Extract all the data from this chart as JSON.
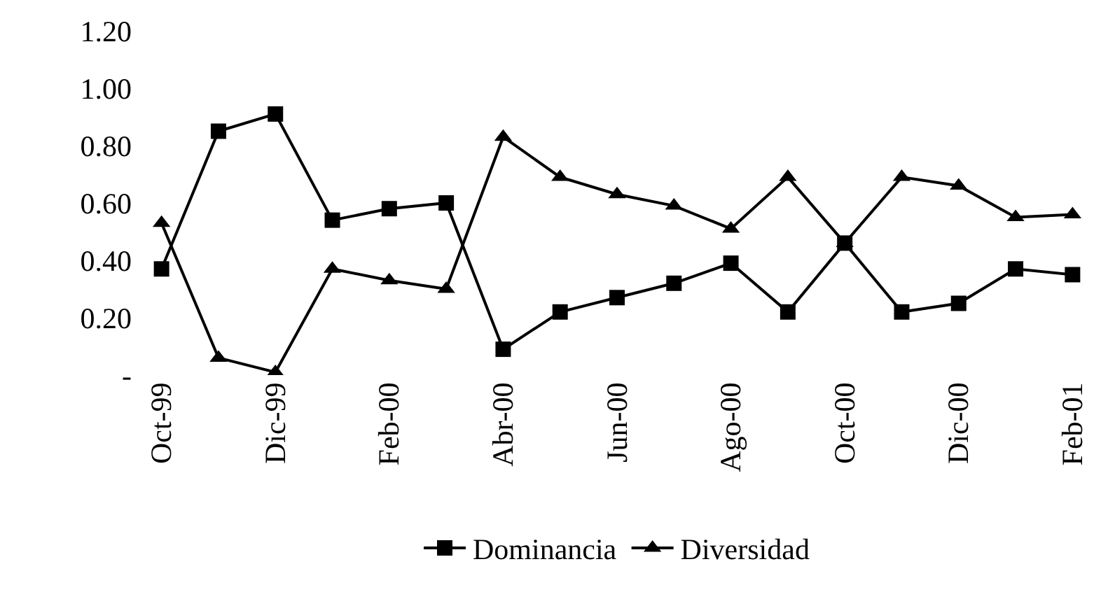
{
  "chart_data": {
    "type": "line",
    "categories": [
      "Oct-99",
      null,
      "Dic-99",
      null,
      "Feb-00",
      null,
      "Abr-00",
      null,
      "Jun-00",
      null,
      "Ago-00",
      null,
      "Oct-00",
      null,
      "Dic-00",
      null,
      "Feb-01"
    ],
    "series": [
      {
        "name": "Dominancia",
        "color": "#000000",
        "marker": "square",
        "values": [
          0.37,
          0.85,
          0.91,
          0.54,
          0.58,
          0.6,
          0.09,
          0.22,
          0.27,
          0.32,
          0.39,
          0.22,
          0.46,
          0.22,
          0.25,
          0.37,
          0.35
        ]
      },
      {
        "name": "Diversidad",
        "color": "#000000",
        "marker": "triangle",
        "values": [
          0.53,
          0.06,
          0.01,
          0.37,
          0.33,
          0.3,
          0.83,
          0.69,
          0.63,
          0.59,
          0.51,
          0.69,
          0.46,
          0.69,
          0.66,
          0.55,
          0.56
        ]
      }
    ],
    "ylim": [
      0,
      1.2
    ],
    "yticks": [
      {
        "value": 0,
        "label": "-"
      },
      {
        "value": 0.2,
        "label": "0.20"
      },
      {
        "value": 0.4,
        "label": "0.40"
      },
      {
        "value": 0.6,
        "label": "0.60"
      },
      {
        "value": 0.8,
        "label": "0.80"
      },
      {
        "value": 1.0,
        "label": "1.00"
      },
      {
        "value": 1.2,
        "label": "1.20"
      }
    ],
    "legend": "bottom",
    "line_style": "solid"
  }
}
